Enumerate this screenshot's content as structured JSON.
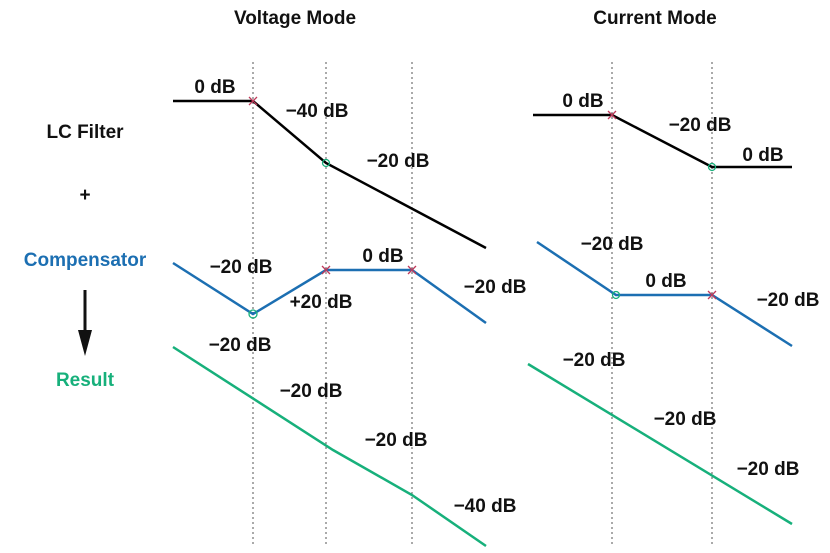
{
  "row_labels": {
    "lc_filter": "LC Filter",
    "plus": "+",
    "compensator": "Compensator",
    "result": "Result"
  },
  "panels": [
    {
      "title": "Voltage Mode",
      "lc_filter": [
        "0 dB",
        "−40 dB",
        "−20 dB"
      ],
      "compensator": [
        "−20 dB",
        "+20 dB",
        "0 dB",
        "−20 dB",
        "−20 dB"
      ],
      "result": [
        "−20 dB",
        "−20 dB",
        "−40 dB"
      ]
    },
    {
      "title": "Current Mode",
      "lc_filter": [
        "0 dB",
        "−20 dB",
        "0 dB"
      ],
      "compensator": [
        "−20 dB",
        "0 dB",
        "−20 dB"
      ],
      "result": [
        "−20 dB",
        "−20 dB",
        "−20 dB"
      ]
    }
  ]
}
